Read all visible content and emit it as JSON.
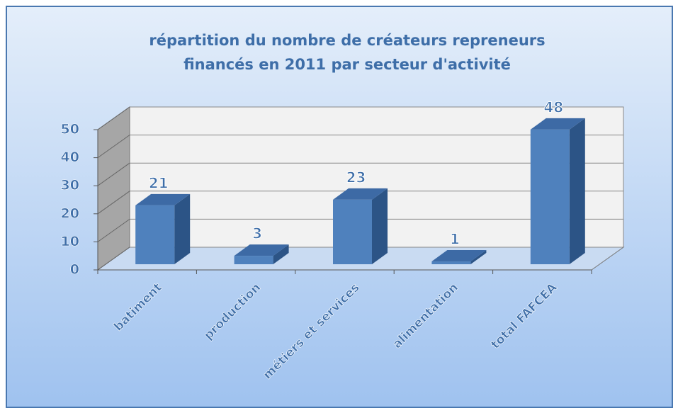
{
  "chart_data": {
    "type": "bar3d",
    "title": "répartition du nombre de créateurs repreneurs  financés en 2011 par secteur d'activité",
    "categories": [
      "batiment",
      "production",
      "métiers et services",
      "alimentation",
      "total FAFCEA"
    ],
    "values": [
      21,
      3,
      23,
      1,
      48
    ],
    "color": "#4f81bd",
    "ylim": [
      0,
      50
    ],
    "yticks": [
      0,
      10,
      20,
      30,
      40,
      50
    ],
    "grid": true
  }
}
